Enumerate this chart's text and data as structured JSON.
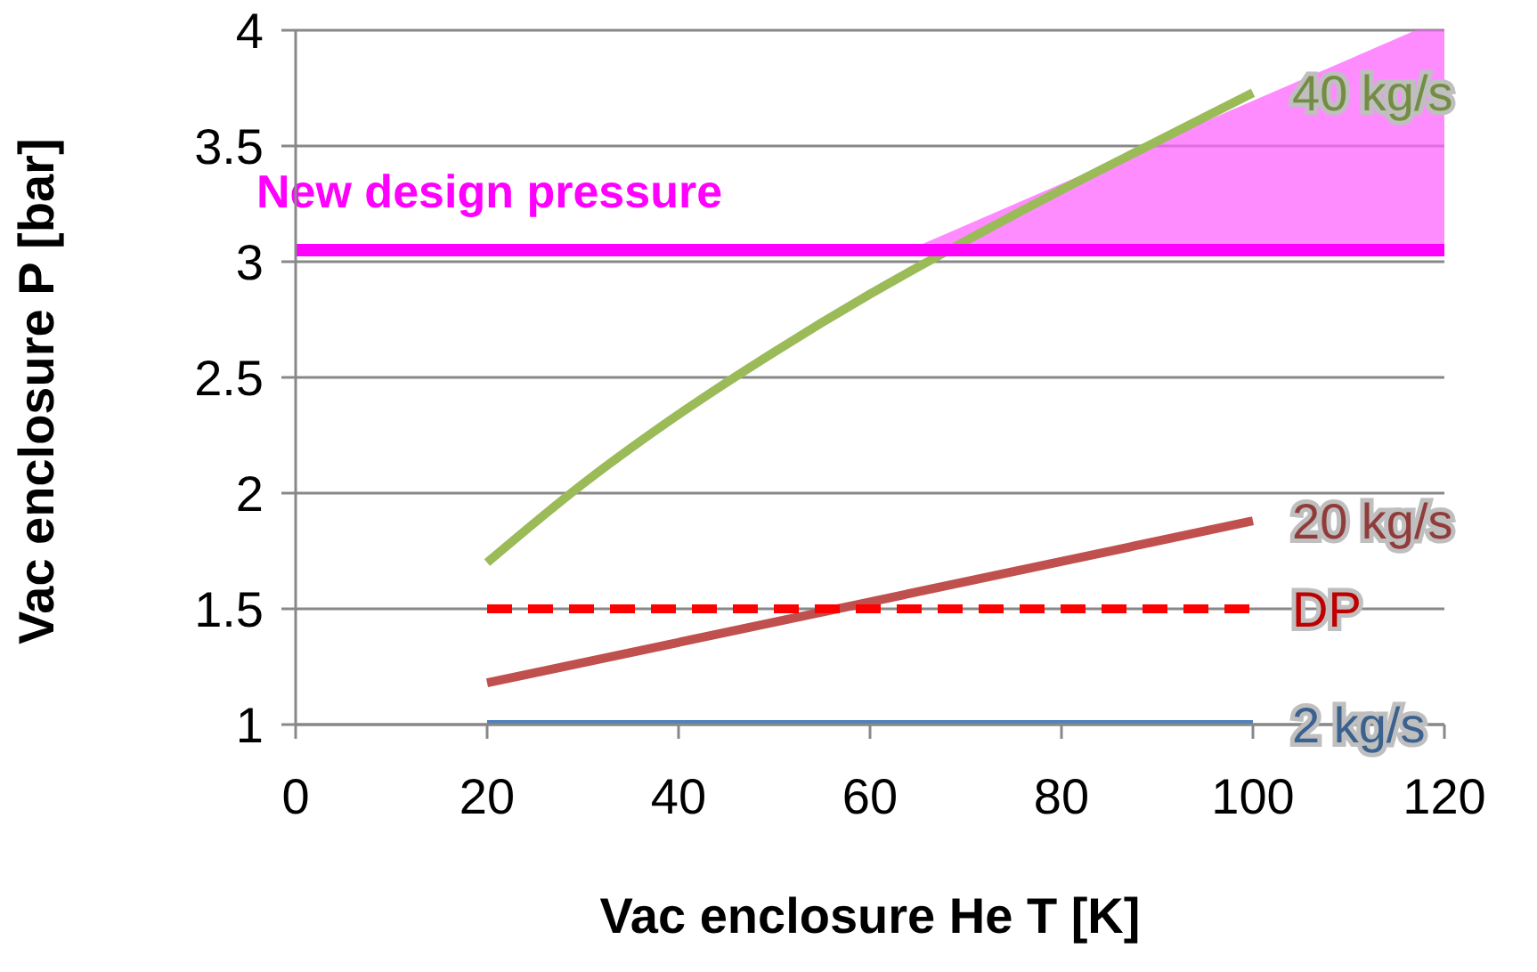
{
  "chart_data": {
    "type": "line",
    "xlabel": "Vac enclosure He T [K]",
    "ylabel": "Vac enclosure P [bar]",
    "xlim": [
      0,
      120
    ],
    "xticks": [
      0,
      20,
      40,
      60,
      80,
      100,
      120
    ],
    "ylim": [
      1,
      4
    ],
    "yticks": [
      1,
      1.5,
      2,
      2.5,
      3,
      3.5,
      4
    ],
    "grid": "y",
    "legend": false,
    "marker": "none",
    "series": [
      {
        "type": "area",
        "color": "#ff66ff",
        "x": [
          64,
          117,
          120
        ],
        "values": [
          3.05,
          4,
          4
        ]
      },
      {
        "name": "40 kg/s",
        "color": "#9bbb59",
        "x": [
          20,
          30,
          40,
          50,
          60,
          70,
          80,
          90,
          100
        ],
        "values": [
          1.7,
          2.04,
          2.34,
          2.61,
          2.86,
          3.09,
          3.31,
          3.52,
          3.73
        ]
      },
      {
        "name": "20 kg/s",
        "color": "#c0504d",
        "x": [
          20,
          100
        ],
        "values": [
          1.18,
          1.88
        ]
      },
      {
        "name": "DP",
        "color": "#ff0000",
        "x": [
          20,
          100
        ],
        "values": [
          1.5,
          1.5
        ],
        "line_style": "dashed"
      },
      {
        "name": "2 kg/s",
        "color": "#4f81bd",
        "x": [
          20,
          100
        ],
        "values": [
          1,
          1
        ]
      }
    ],
    "ref_lines": [
      {
        "axis": "y",
        "value": 3.05,
        "label": "New design pressure",
        "color": "#ff00ff"
      }
    ]
  }
}
